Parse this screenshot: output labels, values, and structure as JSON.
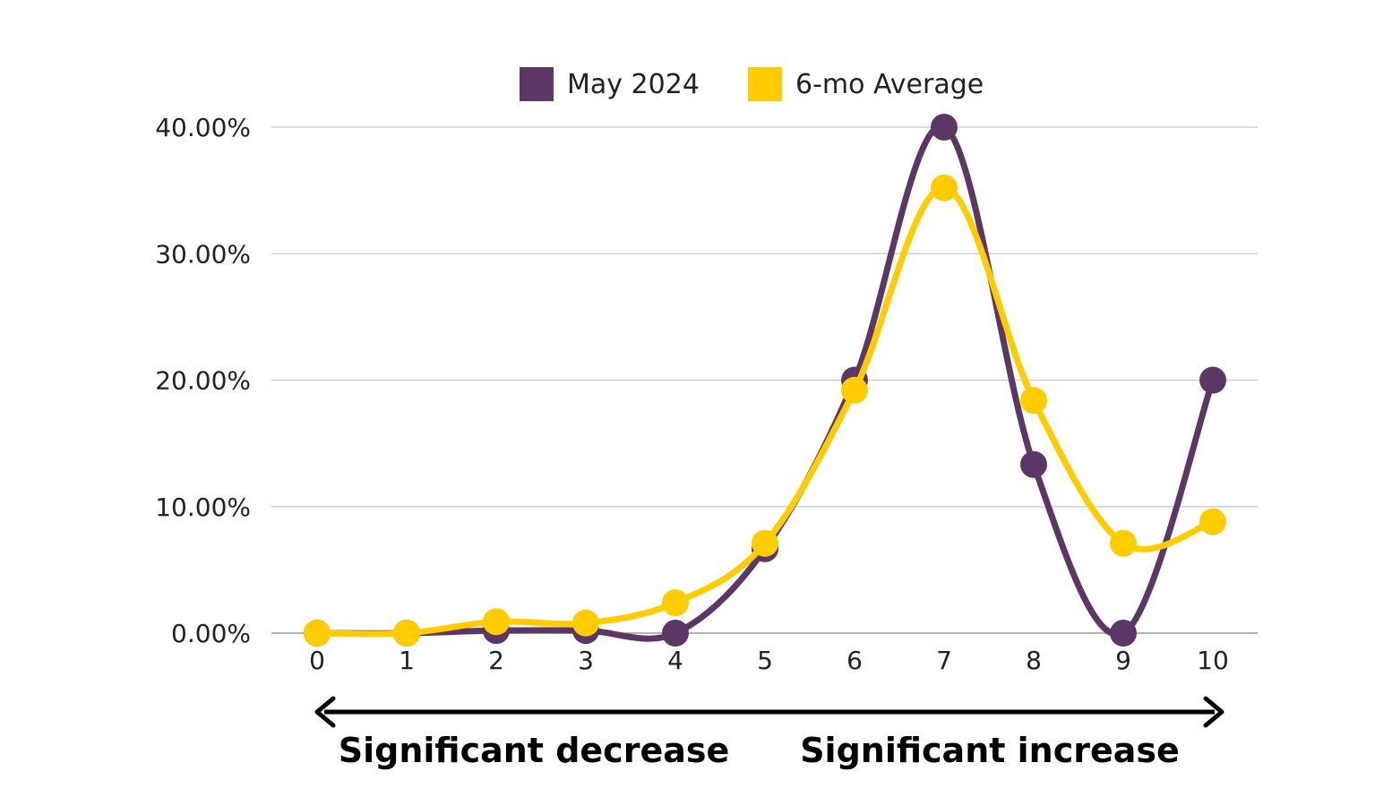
{
  "chart_data": {
    "type": "line",
    "smooth": true,
    "x": [
      0,
      1,
      2,
      3,
      4,
      5,
      6,
      7,
      8,
      9,
      10
    ],
    "series": [
      {
        "name": "May 2024",
        "color": "#5c3766",
        "values": [
          0,
          0,
          0.2,
          0.2,
          0,
          6.67,
          20,
          40,
          13.33,
          0,
          20
        ]
      },
      {
        "name": "6-mo Average",
        "color": "#ffcc00",
        "values": [
          0,
          0,
          0.9,
          0.8,
          2.4,
          7.1,
          19.2,
          35.2,
          18.4,
          7.1,
          8.8
        ]
      }
    ],
    "y_ticks": [
      "0.00%",
      "10.00%",
      "20.00%",
      "30.00%",
      "40.00%"
    ],
    "x_ticks": [
      "0",
      "1",
      "2",
      "3",
      "4",
      "5",
      "6",
      "7",
      "8",
      "9",
      "10"
    ],
    "ylim": [
      0,
      40
    ],
    "grid": true,
    "legend_position": "top-center",
    "scale_labels": {
      "left": "Significant decrease",
      "right": "Significant increase"
    }
  }
}
